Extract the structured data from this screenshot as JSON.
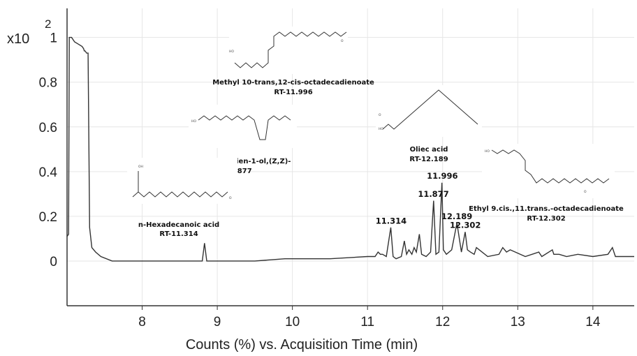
{
  "chart_data": {
    "type": "line",
    "title": "",
    "xlabel": "Counts (%) vs. Acquisition Time (min)",
    "ylabel": "",
    "y_multiplier": "x10",
    "y_multiplier_exp": "2",
    "xlim": [
      7.0,
      14.55
    ],
    "ylim": [
      -0.2,
      1.13
    ],
    "x_ticks": [
      "8",
      "9",
      "10",
      "11",
      "12",
      "13",
      "14"
    ],
    "y_ticks": [
      "0",
      "0.2",
      "0.4",
      "0.6",
      "0.8",
      "1"
    ],
    "grid": true,
    "series": [
      {
        "color": "#333333",
        "x": [
          7.0,
          7.02,
          7.03,
          7.06,
          7.08,
          7.1,
          7.15,
          7.2,
          7.22,
          7.23,
          7.24,
          7.26,
          7.28,
          7.3,
          7.33,
          7.38,
          7.45,
          7.6,
          8.0,
          8.7,
          8.8,
          8.83,
          8.86,
          8.95,
          9.5,
          9.9,
          10.5,
          11.0,
          11.1,
          11.14,
          11.17,
          11.2,
          11.25,
          11.31,
          11.34,
          11.38,
          11.45,
          11.49,
          11.52,
          11.55,
          11.59,
          11.62,
          11.65,
          11.69,
          11.72,
          11.78,
          11.84,
          11.88,
          11.91,
          11.95,
          11.99,
          12.01,
          12.05,
          12.12,
          12.19,
          12.25,
          12.3,
          12.33,
          12.37,
          12.42,
          12.45,
          12.6,
          12.75,
          12.8,
          12.85,
          12.9,
          13.1,
          13.28,
          13.32,
          13.46,
          13.48,
          13.55,
          13.65,
          13.8,
          14.0,
          14.2,
          14.26,
          14.3,
          14.55
        ],
        "y": [
          0.11,
          0.12,
          1.0,
          1.0,
          0.99,
          0.98,
          0.97,
          0.96,
          0.95,
          0.94,
          0.94,
          0.93,
          0.93,
          0.15,
          0.06,
          0.04,
          0.02,
          0.0,
          0.0,
          0.0,
          0.0,
          0.08,
          0.0,
          0.0,
          0.0,
          0.01,
          0.01,
          0.02,
          0.02,
          0.04,
          0.03,
          0.03,
          0.02,
          0.15,
          0.02,
          0.01,
          0.02,
          0.09,
          0.03,
          0.05,
          0.03,
          0.06,
          0.04,
          0.12,
          0.03,
          0.02,
          0.04,
          0.27,
          0.03,
          0.04,
          0.35,
          0.05,
          0.03,
          0.05,
          0.17,
          0.04,
          0.13,
          0.05,
          0.04,
          0.03,
          0.06,
          0.02,
          0.03,
          0.06,
          0.04,
          0.05,
          0.02,
          0.04,
          0.02,
          0.05,
          0.03,
          0.03,
          0.02,
          0.03,
          0.02,
          0.03,
          0.06,
          0.02,
          0.02
        ]
      }
    ],
    "peak_labels": [
      {
        "text": "11.314",
        "x": 11.314,
        "y": 0.155
      },
      {
        "text": "11.877",
        "x": 11.877,
        "y": 0.275
      },
      {
        "text": "11.996",
        "x": 11.996,
        "y": 0.355
      },
      {
        "text": "12.189",
        "x": 12.189,
        "y": 0.175
      },
      {
        "text": "12.302",
        "x": 12.302,
        "y": 0.135
      }
    ],
    "annotations": [
      {
        "name": "Methyl 10-trans,12-cis-octadecadienoate",
        "rt": "RT-11.996"
      },
      {
        "name": "9,12-Octadecadien-1-ol,(Z,Z)-",
        "rt": "RT-11.877"
      },
      {
        "name": "Oliec acid",
        "rt": "RT-12.189"
      },
      {
        "name": "n-Hexadecanoic acid",
        "rt": "RT-11.314"
      },
      {
        "name": "Ethyl 9.cis.,11.trans.-octadecadienoate",
        "rt": "RT-12.302"
      }
    ],
    "structure_atoms": {
      "oh": "HO",
      "o": "O",
      "oh_lower": "OH"
    }
  }
}
